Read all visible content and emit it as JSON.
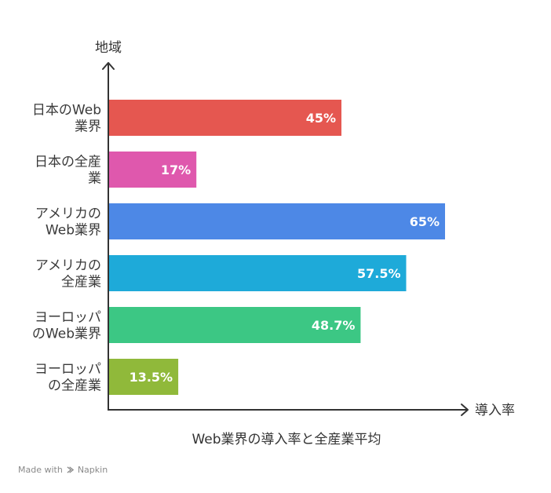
{
  "chart_data": {
    "type": "bar",
    "orientation": "horizontal",
    "title": "Web業界の導入率と全産業平均",
    "xlabel": "導入率",
    "ylabel": "地域",
    "xlim": [
      0,
      70
    ],
    "grid": false,
    "categories": [
      [
        "日本のWeb",
        "業界"
      ],
      [
        "日本の全産",
        "業"
      ],
      [
        "アメリカの",
        "Web業界"
      ],
      [
        "アメリカの",
        "全産業"
      ],
      [
        "ヨーロッパ",
        "のWeb業界"
      ],
      [
        "ヨーロッパ",
        "の全産業"
      ]
    ],
    "values": [
      45,
      17,
      65,
      57.5,
      48.7,
      13.5
    ],
    "value_labels": [
      "45%",
      "17%",
      "65%",
      "57.5%",
      "48.7%",
      "13.5%"
    ],
    "colors": [
      "#e55750",
      "#df58ad",
      "#4d88e6",
      "#1eaad9",
      "#3cc784",
      "#90b93a"
    ]
  },
  "footer": {
    "made_with": "Made with",
    "brand": "Napkin"
  }
}
